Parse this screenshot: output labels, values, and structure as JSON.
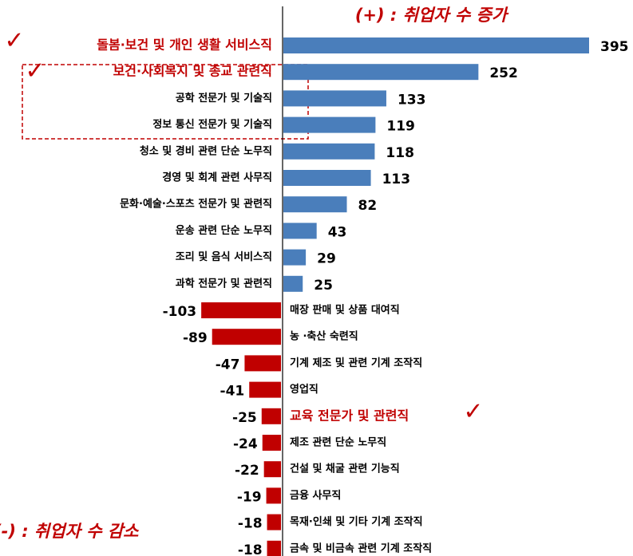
{
  "chart_data": {
    "type": "diverging_bar",
    "title": "(+) : 취업자 수 증가",
    "subtitle": "(-) : 취업자 수 감소",
    "categories": [
      "돌봄·보건 및 개인 생활 서비스직",
      "보건·사회복지 및 종교 관련직",
      "공학 전문가 및 기술직",
      "정보 통신 전문가 및 기술직",
      "청소 및 경비 관련 단순 노무직",
      "경영 및 회계 관련 사무직",
      "문화·예술·스포츠 전문가 및 관련직",
      "운송 관련 단순 노무직",
      "조리 및 음식 서비스직",
      "과학 전문가 및 관련직",
      "매장 판매 및 상품 대여직",
      "농 ·축산 숙련직",
      "기계 제조 및 관련 기계 조작직",
      "영업직",
      "교육 전문가 및 관련직",
      "제조 관련 단순 노무직",
      "건설 및 채굴 관련 기능직",
      "금융 사무직",
      "목재·인쇄 및 기타 기계 조작직",
      "금속 및 비금속 관련 기계 조작직"
    ],
    "values": [
      395,
      252,
      133,
      119,
      118,
      113,
      82,
      43,
      29,
      25,
      -103,
      -89,
      -47,
      -41,
      -25,
      -24,
      -22,
      -19,
      -18,
      -18
    ],
    "positive_color": "#4a7ebb",
    "negative_color": "#c00000",
    "label_colors": [
      "#c00000",
      "#c00000",
      "#000000",
      "#000000",
      "#000000",
      "#000000",
      "#000000",
      "#000000",
      "#000000",
      "#000000",
      "#000000",
      "#000000",
      "#000000",
      "#000000",
      "#c00000",
      "#000000",
      "#000000",
      "#000000",
      "#000000",
      "#000000"
    ]
  }
}
